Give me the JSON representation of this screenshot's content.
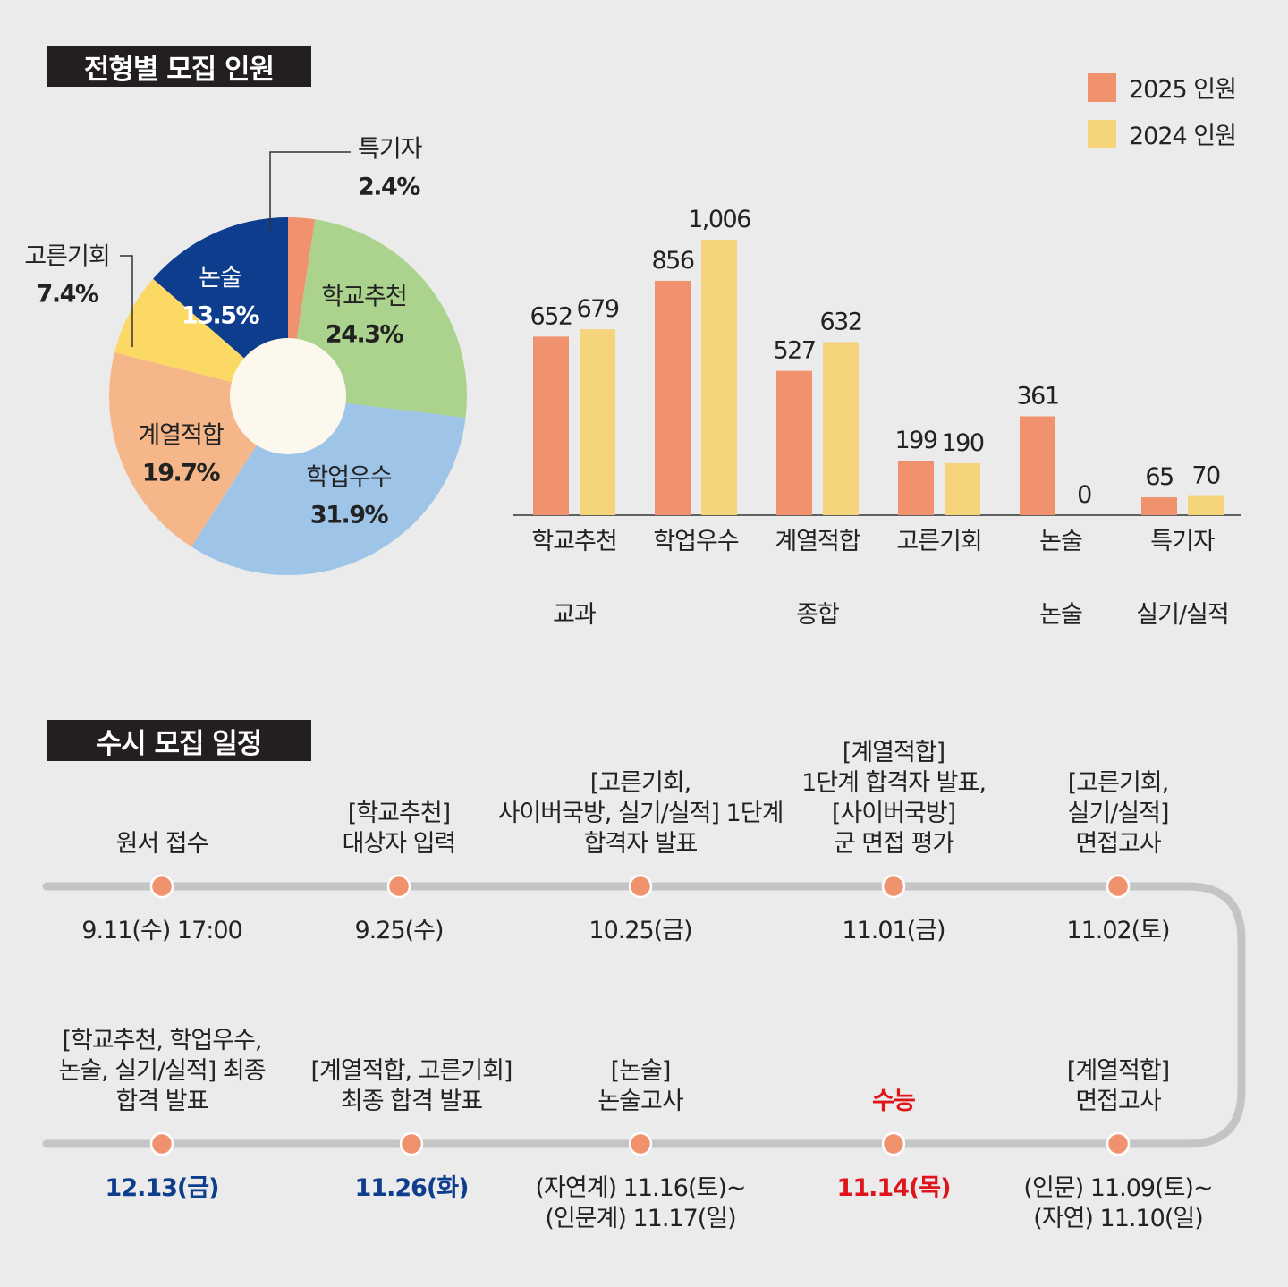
{
  "section_titles": {
    "recruitment": "전형별 모집 인원",
    "schedule": "수시 모집 일정"
  },
  "colors": {
    "y2025": "#f0926e",
    "y2024": "#f6d47c",
    "navy": "#0e3d8e",
    "red": "#e0141b",
    "dot": "#f0926e",
    "track": "#c4c4c4"
  },
  "chart_data": [
    {
      "type": "pie",
      "style": "donut",
      "labels": [
        "특기자",
        "학교추천",
        "학업우수",
        "계열적합",
        "고른기회",
        "논술"
      ],
      "values": [
        2.4,
        24.3,
        31.9,
        19.7,
        7.4,
        13.5
      ],
      "value_labels": [
        "2.4%",
        "24.3%",
        "31.9%",
        "19.7%",
        "7.4%",
        "13.5%"
      ],
      "colors": [
        "#f0926e",
        "#acd38e",
        "#9ec4e8",
        "#f5b68a",
        "#fcd865",
        "#0e3d8e"
      ]
    },
    {
      "type": "bar",
      "categories": [
        "학교추천",
        "학업우수",
        "계열적합",
        "고른기회",
        "논술",
        "특기자"
      ],
      "groups": [
        {
          "label": "교과",
          "categories": [
            "학교추천"
          ]
        },
        {
          "label": "종합",
          "categories": [
            "학업우수",
            "계열적합",
            "고른기회"
          ]
        },
        {
          "label": "논술",
          "categories": [
            "논술"
          ]
        },
        {
          "label": "실기/실적",
          "categories": [
            "특기자"
          ]
        }
      ],
      "series": [
        {
          "name": "2025 인원",
          "values": [
            652,
            856,
            527,
            199,
            361,
            65
          ],
          "labels": [
            "652",
            "856",
            "527",
            "199",
            "361",
            "65"
          ]
        },
        {
          "name": "2024 인원",
          "values": [
            679,
            1006,
            632,
            190,
            0,
            70
          ],
          "labels": [
            "679",
            "1,006",
            "632",
            "190",
            "0",
            "70"
          ]
        }
      ],
      "ylim": [
        0,
        1006
      ],
      "legend": "top-right",
      "grid": false
    }
  ],
  "schedule": {
    "top": [
      {
        "label": [
          "원서 접수"
        ],
        "date": [
          "9.11(수) 17:00"
        ]
      },
      {
        "label": [
          "[학교추천]",
          "대상자 입력"
        ],
        "date": [
          "9.25(수)"
        ]
      },
      {
        "label": [
          "[고른기회,",
          "사이버국방, 실기/실적] 1단계",
          "합격자 발표"
        ],
        "date": [
          "10.25(금)"
        ]
      },
      {
        "label": [
          "[계열적합]",
          "1단계 합격자 발표,",
          "[사이버국방]",
          "군 면접 평가"
        ],
        "date": [
          "11.01(금)"
        ]
      },
      {
        "label": [
          "[고른기회,",
          "실기/실적]",
          "면접고사"
        ],
        "date": [
          "11.02(토)"
        ]
      }
    ],
    "bottom": [
      {
        "label": [
          "[학교추천, 학업우수,",
          "논술, 실기/실적] 최종",
          "합격 발표"
        ],
        "date": [
          "12.13(금)"
        ],
        "date_style": "blue"
      },
      {
        "label": [
          "[계열적합, 고른기회]",
          "최종 합격 발표"
        ],
        "date": [
          "11.26(화)"
        ],
        "date_style": "blue"
      },
      {
        "label": [
          "[논술]",
          "논술고사"
        ],
        "date": [
          "(자연계) 11.16(토)~",
          "(인문계) 11.17(일)"
        ]
      },
      {
        "label": [
          "수능"
        ],
        "date": [
          "11.14(목)"
        ],
        "label_style": "red",
        "date_style": "red"
      },
      {
        "label": [
          "[계열적합]",
          "면접고사"
        ],
        "date": [
          "(인문) 11.09(토)~",
          "(자연) 11.10(일)"
        ]
      }
    ]
  }
}
